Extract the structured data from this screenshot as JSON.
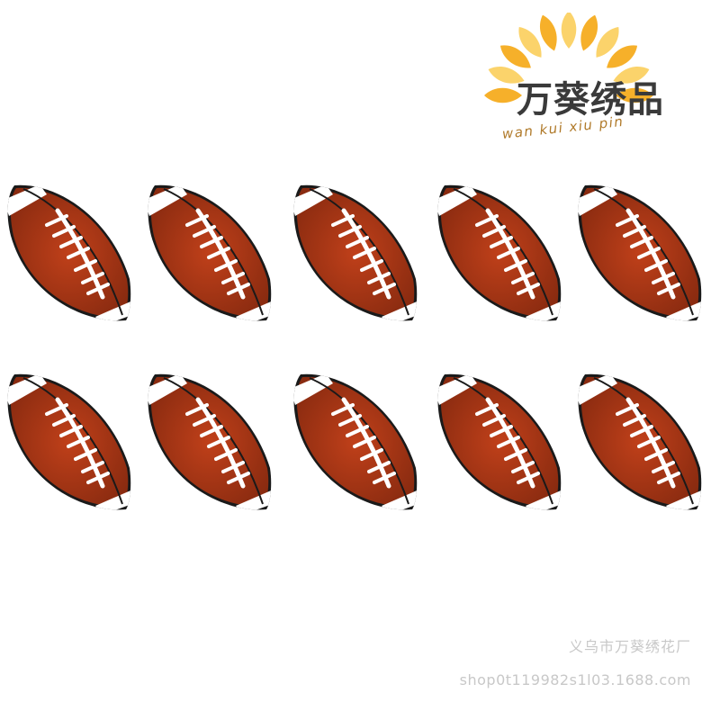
{
  "logo": {
    "title": "万葵绣品",
    "subtitle": "wan kui xiu pin",
    "icon": "sunflower-icon",
    "petal_color": "#f6b02a",
    "petal_color_light": "#fbd36b"
  },
  "patches": {
    "item": "american-football-embroidered-patch",
    "count": 10,
    "rows": 2,
    "columns": 5,
    "colors": {
      "leather": "#c0401a",
      "leather_dark": "#8a2b10",
      "stripe": "#ffffff",
      "outline": "#1a1a1a"
    }
  },
  "footer": {
    "company": "义乌市万葵绣花厂",
    "shop": "shop0t119982s1l03.1688.com"
  }
}
